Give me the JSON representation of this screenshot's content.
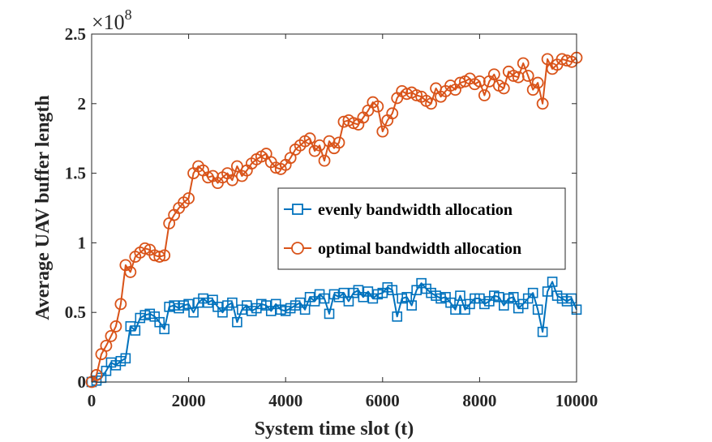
{
  "chart_data": {
    "type": "line",
    "xlabel": "System time slot (t)",
    "ylabel": "Average UAV buffer length",
    "y_exponent_label": "×10",
    "y_exponent_value": "8",
    "xlim": [
      0,
      10000
    ],
    "ylim": [
      0,
      2.5
    ],
    "x_ticks": [
      0,
      2000,
      4000,
      6000,
      8000,
      10000
    ],
    "x_tick_labels": [
      "0",
      "2000",
      "4000",
      "6000",
      "8000",
      "10000"
    ],
    "y_ticks": [
      0,
      0.5,
      1,
      1.5,
      2,
      2.5
    ],
    "y_tick_labels": [
      "0",
      "0.5",
      "1",
      "1.5",
      "2",
      "2.5"
    ],
    "grid": false,
    "legend_position": "center-right",
    "colors": {
      "evenly": "#0072BD",
      "optimal": "#D95319"
    },
    "series": [
      {
        "name": "evenly bandwidth allocation",
        "marker": "square",
        "x": [
          0,
          100,
          200,
          300,
          400,
          500,
          600,
          700,
          800,
          900,
          1000,
          1100,
          1200,
          1300,
          1400,
          1500,
          1600,
          1700,
          1800,
          1900,
          2000,
          2100,
          2200,
          2300,
          2400,
          2500,
          2600,
          2700,
          2800,
          2900,
          3000,
          3100,
          3200,
          3300,
          3400,
          3500,
          3600,
          3700,
          3800,
          3900,
          4000,
          4100,
          4200,
          4300,
          4400,
          4500,
          4600,
          4700,
          4800,
          4900,
          5000,
          5100,
          5200,
          5300,
          5400,
          5500,
          5600,
          5700,
          5800,
          5900,
          6000,
          6100,
          6200,
          6300,
          6400,
          6500,
          6600,
          6700,
          6800,
          6900,
          7000,
          7100,
          7200,
          7300,
          7400,
          7500,
          7600,
          7700,
          7800,
          7900,
          8000,
          8100,
          8200,
          8300,
          8400,
          8500,
          8600,
          8700,
          8800,
          8900,
          9000,
          9100,
          9200,
          9300,
          9400,
          9500,
          9600,
          9700,
          9800,
          9900,
          10000
        ],
        "values": [
          0.0,
          0.01,
          0.03,
          0.08,
          0.14,
          0.12,
          0.15,
          0.17,
          0.4,
          0.37,
          0.46,
          0.48,
          0.49,
          0.47,
          0.43,
          0.38,
          0.54,
          0.55,
          0.53,
          0.55,
          0.56,
          0.5,
          0.57,
          0.6,
          0.57,
          0.59,
          0.54,
          0.5,
          0.55,
          0.57,
          0.43,
          0.52,
          0.55,
          0.51,
          0.53,
          0.56,
          0.55,
          0.51,
          0.56,
          0.52,
          0.51,
          0.53,
          0.55,
          0.57,
          0.52,
          0.61,
          0.58,
          0.63,
          0.6,
          0.49,
          0.63,
          0.61,
          0.64,
          0.58,
          0.64,
          0.66,
          0.61,
          0.65,
          0.6,
          0.63,
          0.64,
          0.68,
          0.66,
          0.47,
          0.6,
          0.61,
          0.55,
          0.66,
          0.71,
          0.67,
          0.64,
          0.62,
          0.6,
          0.61,
          0.57,
          0.52,
          0.62,
          0.52,
          0.56,
          0.6,
          0.6,
          0.56,
          0.58,
          0.62,
          0.61,
          0.55,
          0.6,
          0.61,
          0.53,
          0.56,
          0.6,
          0.64,
          0.52,
          0.36,
          0.65,
          0.72,
          0.62,
          0.6,
          0.58,
          0.6,
          0.52
        ]
      },
      {
        "name": "optimal bandwidth allocation",
        "marker": "circle",
        "x": [
          0,
          100,
          200,
          300,
          400,
          500,
          600,
          700,
          800,
          900,
          1000,
          1100,
          1200,
          1300,
          1400,
          1500,
          1600,
          1700,
          1800,
          1900,
          2000,
          2100,
          2200,
          2300,
          2400,
          2500,
          2600,
          2700,
          2800,
          2900,
          3000,
          3100,
          3200,
          3300,
          3400,
          3500,
          3600,
          3700,
          3800,
          3900,
          4000,
          4100,
          4200,
          4300,
          4400,
          4500,
          4600,
          4700,
          4800,
          4900,
          5000,
          5100,
          5200,
          5300,
          5400,
          5500,
          5600,
          5700,
          5800,
          5900,
          6000,
          6100,
          6200,
          6300,
          6400,
          6500,
          6600,
          6700,
          6800,
          6900,
          7000,
          7100,
          7200,
          7300,
          7400,
          7500,
          7600,
          7700,
          7800,
          7900,
          8000,
          8100,
          8200,
          8300,
          8400,
          8500,
          8600,
          8700,
          8800,
          8900,
          9000,
          9100,
          9200,
          9300,
          9400,
          9500,
          9600,
          9700,
          9800,
          9900,
          10000
        ],
        "values": [
          0.0,
          0.05,
          0.2,
          0.26,
          0.33,
          0.4,
          0.56,
          0.84,
          0.79,
          0.9,
          0.93,
          0.96,
          0.95,
          0.91,
          0.9,
          0.91,
          1.14,
          1.2,
          1.25,
          1.29,
          1.32,
          1.5,
          1.55,
          1.52,
          1.47,
          1.48,
          1.43,
          1.47,
          1.5,
          1.45,
          1.55,
          1.48,
          1.52,
          1.57,
          1.6,
          1.62,
          1.64,
          1.58,
          1.54,
          1.53,
          1.56,
          1.61,
          1.67,
          1.7,
          1.73,
          1.75,
          1.66,
          1.7,
          1.59,
          1.73,
          1.68,
          1.72,
          1.87,
          1.88,
          1.86,
          1.85,
          1.9,
          1.95,
          2.01,
          1.98,
          1.8,
          1.88,
          1.93,
          2.04,
          2.09,
          2.07,
          2.08,
          2.06,
          2.05,
          2.02,
          2.0,
          2.11,
          2.05,
          2.09,
          2.13,
          2.1,
          2.15,
          2.16,
          2.18,
          2.14,
          2.16,
          2.06,
          2.16,
          2.21,
          2.13,
          2.11,
          2.23,
          2.2,
          2.19,
          2.29,
          2.2,
          2.1,
          2.15,
          2.0,
          2.32,
          2.25,
          2.28,
          2.32,
          2.31,
          2.3,
          2.33
        ]
      }
    ]
  }
}
